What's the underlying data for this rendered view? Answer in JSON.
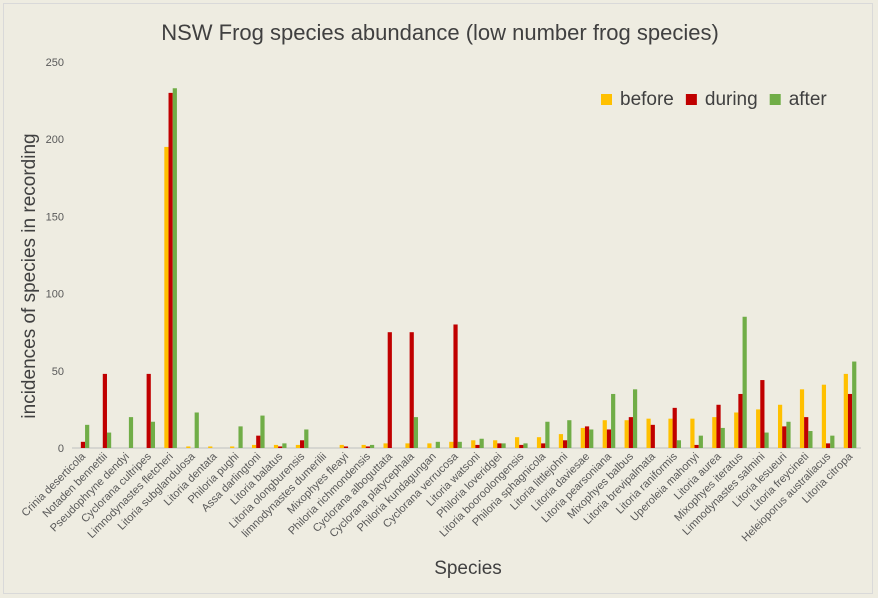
{
  "chart_data": {
    "type": "bar",
    "title": "NSW Frog species abundance (low number frog species)",
    "xlabel": "Species",
    "ylabel": "incidences of species in recording",
    "ylim": [
      0,
      250
    ],
    "yticks": [
      0,
      50,
      100,
      150,
      200,
      250
    ],
    "legend_position": "top-right",
    "categories": [
      "Crinia deserticola",
      "Notaden bennettii",
      "Pseudophryne dendyi",
      "Cyclorana cultripes",
      "Limnodynastes fletcheri",
      "Litoria subglandulosa",
      "Litoria dentata",
      "Philoria pughi",
      "Assa darlingtoni",
      "Litoria balatus",
      "Litoria olongburensis",
      "limnodynastes dumerilii",
      "Mixophyes fleayi",
      "Philoria richmondensis",
      "Cyclorana alboguttata",
      "Cyclorana platycephala",
      "Philoria kundagungan",
      "Cyclorana verrucosa",
      "Litoria watsoni",
      "Philoria loveridgei",
      "Litoria booroolongensis",
      "Philoria sphagnicola",
      "Litoria littlejohni",
      "Litoria daviesae",
      "Litoria pearsoniana",
      "Mixophyes balbus",
      "Litoria brevipalmata",
      "Litoria raniformis",
      "Uperoleia mahonyi",
      "Litoria aurea",
      "Mixophyes iteratus",
      "Limnodynastes salmini",
      "Litoria lesueuri",
      "Litoria freycineti",
      "Heleioporus australiacus",
      "Litoria citropa"
    ],
    "series": [
      {
        "name": "before",
        "color": "#ffc000",
        "values": [
          0,
          0,
          0,
          0,
          195,
          1,
          1,
          1,
          2,
          2,
          2,
          0,
          2,
          2,
          3,
          3,
          3,
          4,
          5,
          5,
          7,
          7,
          9,
          13,
          18,
          18,
          19,
          19,
          19,
          20,
          23,
          25,
          28,
          38,
          41,
          48
        ]
      },
      {
        "name": "during",
        "color": "#c00000",
        "values": [
          4,
          48,
          0,
          48,
          230,
          0,
          0,
          0,
          8,
          1,
          5,
          0,
          1,
          1,
          75,
          75,
          0,
          80,
          2,
          3,
          2,
          3,
          5,
          14,
          12,
          20,
          15,
          26,
          2,
          28,
          35,
          44,
          14,
          20,
          3,
          35
        ]
      },
      {
        "name": "after",
        "color": "#70ad47",
        "values": [
          15,
          10,
          20,
          17,
          233,
          23,
          0,
          14,
          21,
          3,
          12,
          0,
          0,
          2,
          0,
          20,
          4,
          4,
          6,
          3,
          3,
          17,
          18,
          12,
          35,
          38,
          0,
          5,
          8,
          13,
          85,
          10,
          17,
          11,
          8,
          56
        ]
      }
    ]
  }
}
